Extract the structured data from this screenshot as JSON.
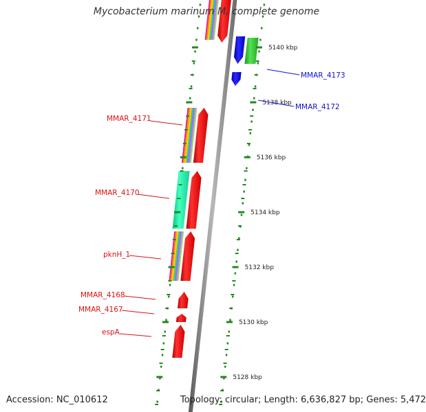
{
  "title": "Mycobacterium marinum M, complete genome",
  "footer": {
    "accession": "Accession: NC_010612",
    "topology": "Topology: circular; Length: 6,636,827 bp; Genes: 5,472"
  },
  "colors": {
    "forward_label": "#dd1111",
    "reverse_label": "#1111cc",
    "backbone": "#8a8a8a",
    "tick": "#228822",
    "gene_red": "#ff1010",
    "gene_blue": "#1a1aff",
    "gene_green": "#33cc33",
    "gene_teal": "#22e8a0"
  },
  "axis": {
    "unit": "kbp",
    "ticks": [
      {
        "value": 5140,
        "label": "5140 kbp"
      },
      {
        "value": 5138,
        "label": "5138 kbp"
      },
      {
        "value": 5136,
        "label": "5136 kbp"
      },
      {
        "value": 5134,
        "label": "5134 kbp"
      },
      {
        "value": 5132,
        "label": "5132 kbp"
      },
      {
        "value": 5130,
        "label": "5130 kbp"
      },
      {
        "value": 5128,
        "label": "5128 kbp"
      }
    ]
  },
  "genes": [
    {
      "name": "MMAR_4173",
      "strand": "reverse",
      "start": 5139.4,
      "end": 5140.4,
      "color": "blue",
      "cog": true
    },
    {
      "name": "MMAR_4172",
      "strand": "reverse",
      "start": 5138.6,
      "end": 5139.1,
      "color": "blue",
      "cog": false
    },
    {
      "name": "MMAR_4171",
      "strand": "forward",
      "start": 5135.8,
      "end": 5137.8,
      "color": "red",
      "cog": true
    },
    {
      "name": "MMAR_4170",
      "strand": "forward",
      "start": 5133.4,
      "end": 5135.5,
      "color": "red",
      "cog": true
    },
    {
      "name": "pknH_1",
      "strand": "forward",
      "start": 5131.5,
      "end": 5133.3,
      "color": "red",
      "cog": true
    },
    {
      "name": "MMAR_4168",
      "strand": "forward",
      "start": 5130.5,
      "end": 5131.1,
      "color": "red",
      "cog": false
    },
    {
      "name": "MMAR_4167",
      "strand": "forward",
      "start": 5130.0,
      "end": 5130.3,
      "color": "red",
      "cog": false
    },
    {
      "name": "espA",
      "strand": "forward",
      "start": 5128.7,
      "end": 5129.9,
      "color": "red",
      "cog": false
    }
  ],
  "labels": [
    {
      "text": "MMAR_4173",
      "gene": "MMAR_4173",
      "side": "right"
    },
    {
      "text": "MMAR_4172",
      "gene": "MMAR_4172",
      "side": "right"
    },
    {
      "text": "MMAR_4171",
      "gene": "MMAR_4171",
      "side": "left"
    },
    {
      "text": "MMAR_4170",
      "gene": "MMAR_4170",
      "side": "left"
    },
    {
      "text": "pknH_1",
      "gene": "pknH_1",
      "side": "left"
    },
    {
      "text": "MMAR_4168",
      "gene": "MMAR_4168",
      "side": "left"
    },
    {
      "text": "MMAR_4167",
      "gene": "MMAR_4167",
      "side": "left"
    },
    {
      "text": "espA",
      "gene": "espA",
      "side": "left"
    }
  ]
}
